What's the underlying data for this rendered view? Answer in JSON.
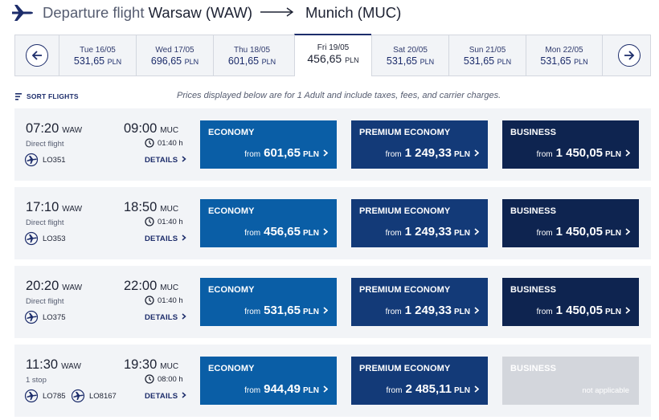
{
  "header": {
    "label": "Departure flight",
    "origin": "Warsaw (WAW)",
    "destination": "Munich (MUC)"
  },
  "dates": [
    {
      "day": "Tue 16/05",
      "price": "531,65",
      "currency": "PLN",
      "selected": false
    },
    {
      "day": "Wed 17/05",
      "price": "696,65",
      "currency": "PLN",
      "selected": false
    },
    {
      "day": "Thu 18/05",
      "price": "601,65",
      "currency": "PLN",
      "selected": false
    },
    {
      "day": "Fri 19/05",
      "price": "456,65",
      "currency": "PLN",
      "selected": true
    },
    {
      "day": "Sat 20/05",
      "price": "531,65",
      "currency": "PLN",
      "selected": false
    },
    {
      "day": "Sun 21/05",
      "price": "531,65",
      "currency": "PLN",
      "selected": false
    },
    {
      "day": "Mon 22/05",
      "price": "531,65",
      "currency": "PLN",
      "selected": false
    }
  ],
  "sort_label": "SORT FLIGHTS",
  "notice": "Prices displayed below are for 1 Adult and include taxes, fees, and carrier charges.",
  "labels": {
    "details": "DETAILS",
    "from": "from",
    "economy": "ECONOMY",
    "premium": "PREMIUM ECONOMY",
    "business": "BUSINESS",
    "not_applicable": "not applicable"
  },
  "flights": [
    {
      "dep_time": "07:20",
      "dep_code": "WAW",
      "arr_time": "09:00",
      "arr_code": "MUC",
      "stops": "Direct flight",
      "duration": "01:40 h",
      "flight_numbers": [
        "LO351"
      ],
      "economy": "601,65",
      "premium": "1 249,33",
      "business": "1 450,05",
      "currency": "PLN"
    },
    {
      "dep_time": "17:10",
      "dep_code": "WAW",
      "arr_time": "18:50",
      "arr_code": "MUC",
      "stops": "Direct flight",
      "duration": "01:40 h",
      "flight_numbers": [
        "LO353"
      ],
      "economy": "456,65",
      "premium": "1 249,33",
      "business": "1 450,05",
      "currency": "PLN"
    },
    {
      "dep_time": "20:20",
      "dep_code": "WAW",
      "arr_time": "22:00",
      "arr_code": "MUC",
      "stops": "Direct flight",
      "duration": "01:40 h",
      "flight_numbers": [
        "LO375"
      ],
      "economy": "531,65",
      "premium": "1 249,33",
      "business": "1 450,05",
      "currency": "PLN"
    },
    {
      "dep_time": "11:30",
      "dep_code": "WAW",
      "arr_time": "19:30",
      "arr_code": "MUC",
      "stops": "1 stop",
      "duration": "08:00 h",
      "flight_numbers": [
        "LO785",
        "LO8167"
      ],
      "economy": "944,49",
      "premium": "2 485,11",
      "business": null,
      "currency": "PLN"
    }
  ],
  "colors": {
    "economy": "#0a5ea6",
    "premium": "#133a78",
    "business": "#0e2450",
    "not_applicable": "#d3d6dc",
    "brand_navy": "#1d2d6b"
  },
  "icons": {
    "header": "plane-icon",
    "nav_prev": "arrow-left-icon",
    "nav_next": "arrow-right-icon",
    "sort": "sort-icon",
    "duration": "clock-icon",
    "airline": "lot-logo-icon"
  }
}
